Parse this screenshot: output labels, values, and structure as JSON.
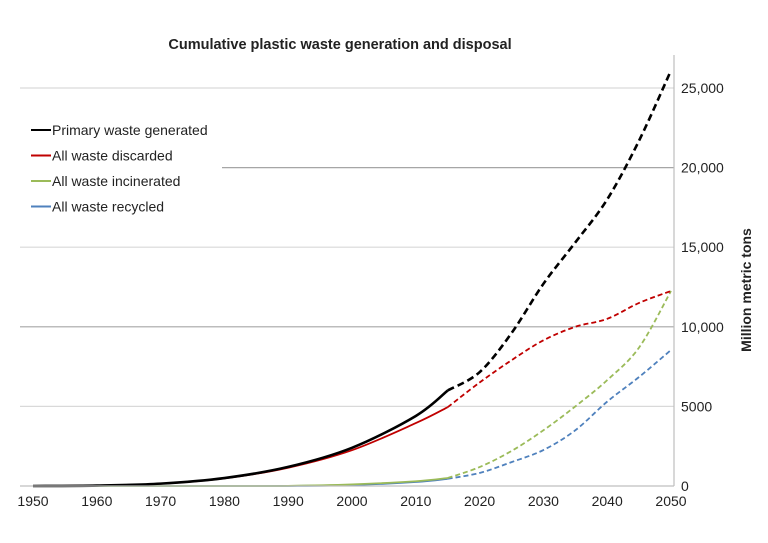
{
  "chart_data": {
    "type": "line",
    "title": "Cumulative plastic waste generation and disposal",
    "xlabel": "",
    "ylabel": "Million metric tons",
    "xlim": [
      1950,
      2050
    ],
    "ylim": [
      0,
      25000
    ],
    "x_ticks": [
      "1950",
      "1960",
      "1970",
      "1980",
      "1990",
      "2000",
      "2010",
      "2020",
      "2030",
      "2040",
      "2050"
    ],
    "y_ticks": [
      {
        "value": 0,
        "label": "0"
      },
      {
        "value": 5000,
        "label": "5000"
      },
      {
        "value": 10000,
        "label": "10,000"
      },
      {
        "value": 15000,
        "label": "15,000"
      },
      {
        "value": 20000,
        "label": "20,000"
      },
      {
        "value": 25000,
        "label": "25,000"
      }
    ],
    "y_axis_side": "right",
    "grid": true,
    "legend_position": "top-left",
    "observed_until": 2015,
    "projection_style": "dashed",
    "x": [
      1950,
      1960,
      1970,
      1980,
      1990,
      2000,
      2010,
      2015,
      2020,
      2025,
      2030,
      2035,
      2040,
      2045,
      2050
    ],
    "series": [
      {
        "name": "Primary waste generated",
        "color": "#000000",
        "values": [
          0,
          30,
          150,
          500,
          1200,
          2400,
          4400,
          6000,
          7150,
          9600,
          12700,
          15300,
          18000,
          21700,
          26100
        ]
      },
      {
        "name": "All waste discarded",
        "color": "#c00000",
        "values": [
          0,
          30,
          140,
          480,
          1150,
          2250,
          3950,
          4950,
          6500,
          7900,
          9150,
          10000,
          10500,
          11500,
          12250
        ]
      },
      {
        "name": "All waste incinerated",
        "color": "#9bbb59",
        "values": [
          0,
          0,
          0,
          0,
          10,
          100,
          300,
          500,
          1190,
          2200,
          3500,
          5000,
          6650,
          8700,
          12250
        ]
      },
      {
        "name": "All waste recycled",
        "color": "#4f81bd",
        "values": [
          0,
          0,
          0,
          0,
          5,
          60,
          250,
          450,
          820,
          1500,
          2260,
          3500,
          5300,
          6850,
          8540
        ]
      }
    ]
  }
}
